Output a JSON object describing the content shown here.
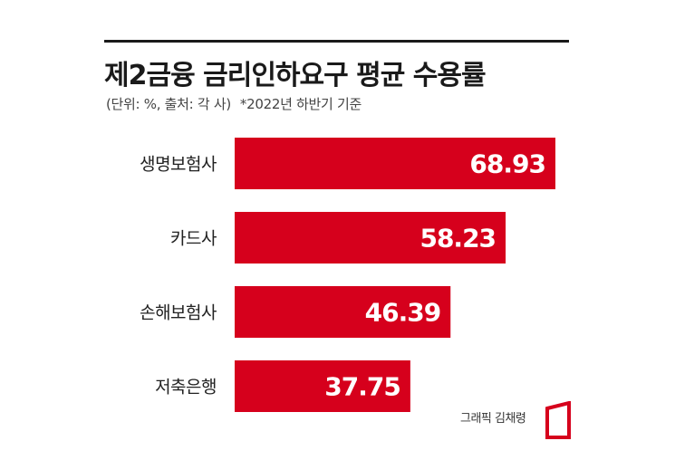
{
  "header": {
    "title": "제2금융 금리인하요구 평균 수용률",
    "unit_source": "(단위: %, 출처: 각 사)",
    "note": "*2022년 하반기 기준"
  },
  "footer": {
    "credit": "그래픽 김채령"
  },
  "colors": {
    "bar": "#d6001c",
    "bar_label": "#ffffff",
    "category_label": "#222222"
  },
  "chart_data": {
    "type": "bar",
    "orientation": "horizontal",
    "categories": [
      "생명보험사",
      "카드사",
      "손해보험사",
      "저축은행"
    ],
    "values": [
      68.93,
      58.23,
      46.39,
      37.75
    ],
    "value_labels": [
      "68.93",
      "58.23",
      "46.39",
      "37.75"
    ],
    "unit": "%",
    "grid": false,
    "legend": "none"
  }
}
